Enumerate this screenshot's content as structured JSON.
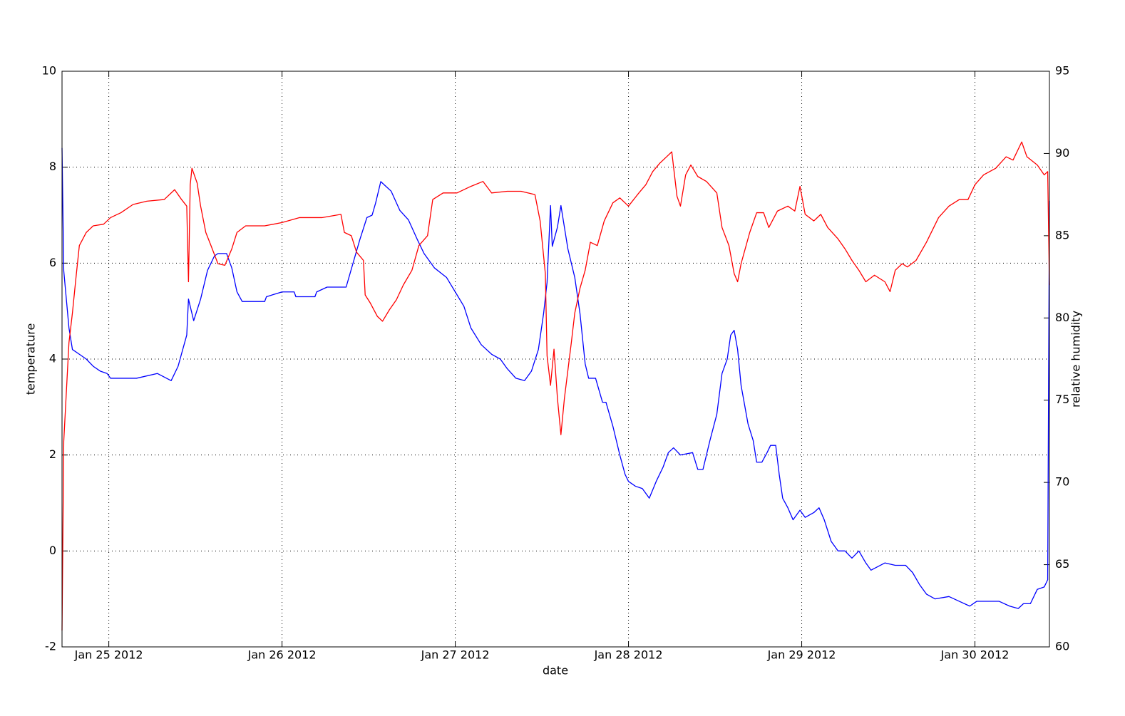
{
  "chart_data": {
    "type": "line",
    "xlabel": "date",
    "ylabel": "temperature",
    "y2label": "relative humidity",
    "xlim": [
      24.73,
      30.43
    ],
    "xticks": [
      {
        "value": 25,
        "label": "Jan 25 2012"
      },
      {
        "value": 26,
        "label": "Jan 26 2012"
      },
      {
        "value": 27,
        "label": "Jan 27 2012"
      },
      {
        "value": 28,
        "label": "Jan 28 2012"
      },
      {
        "value": 29,
        "label": "Jan 29 2012"
      },
      {
        "value": 30,
        "label": "Jan 30 2012"
      }
    ],
    "ylim": [
      -2,
      10
    ],
    "yticks": [
      -2,
      0,
      2,
      4,
      6,
      8,
      10
    ],
    "y2lim": [
      60,
      95
    ],
    "y2ticks": [
      60,
      65,
      70,
      75,
      80,
      85,
      90,
      95
    ],
    "grid": true,
    "series": [
      {
        "color": "#0000ff",
        "axis": "y",
        "x": [
          24.73,
          24.74,
          24.77,
          24.79,
          24.83,
          24.87,
          24.91,
          24.95,
          24.99,
          25.01,
          25.16,
          25.28,
          25.36,
          25.4,
          25.45,
          25.46,
          25.49,
          25.53,
          25.57,
          25.61,
          25.63,
          25.68,
          25.71,
          25.74,
          25.77,
          25.9,
          25.91,
          26.0,
          26.07,
          26.08,
          26.19,
          26.2,
          26.26,
          26.37,
          26.41,
          26.45,
          26.49,
          26.52,
          26.54,
          26.57,
          26.6,
          26.63,
          26.68,
          26.73,
          26.78,
          26.82,
          26.88,
          26.95,
          27.0,
          27.05,
          27.09,
          27.15,
          27.21,
          27.26,
          27.3,
          27.35,
          27.4,
          27.44,
          27.48,
          27.51,
          27.53,
          27.55,
          27.56,
          27.59,
          27.61,
          27.63,
          27.65,
          27.69,
          27.72,
          27.75,
          27.77,
          27.81,
          27.85,
          27.87,
          27.91,
          27.95,
          27.98,
          28.0,
          28.04,
          28.08,
          28.12,
          28.16,
          28.2,
          28.23,
          28.26,
          28.3,
          28.37,
          28.4,
          28.43,
          28.47,
          28.51,
          28.54,
          28.57,
          28.59,
          28.61,
          28.63,
          28.65,
          28.69,
          28.72,
          28.74,
          28.77,
          28.8,
          28.82,
          28.85,
          28.87,
          28.89,
          28.92,
          28.95,
          28.99,
          29.02,
          29.07,
          29.1,
          29.13,
          29.17,
          29.21,
          29.25,
          29.29,
          29.33,
          29.37,
          29.4,
          29.48,
          29.54,
          29.6,
          29.64,
          29.68,
          29.72,
          29.77,
          29.85,
          29.91,
          29.97,
          30.01,
          30.07,
          30.14,
          30.2,
          30.25,
          30.28,
          30.32,
          30.36,
          30.4,
          30.42,
          30.43
        ],
        "values": [
          8.4,
          5.84,
          4.65,
          4.2,
          4.1,
          4.0,
          3.85,
          3.75,
          3.7,
          3.6,
          3.6,
          3.7,
          3.55,
          3.85,
          4.5,
          5.25,
          4.8,
          5.25,
          5.85,
          6.15,
          6.2,
          6.2,
          5.9,
          5.4,
          5.2,
          5.2,
          5.3,
          5.4,
          5.4,
          5.3,
          5.3,
          5.4,
          5.5,
          5.5,
          6.0,
          6.5,
          6.95,
          7.0,
          7.25,
          7.7,
          7.6,
          7.5,
          7.1,
          6.9,
          6.5,
          6.2,
          5.9,
          5.7,
          5.4,
          5.1,
          4.65,
          4.3,
          4.1,
          4.0,
          3.8,
          3.6,
          3.55,
          3.75,
          4.2,
          4.95,
          5.6,
          7.2,
          6.35,
          6.75,
          7.2,
          6.75,
          6.3,
          5.7,
          4.95,
          3.9,
          3.6,
          3.6,
          3.1,
          3.1,
          2.6,
          2.0,
          1.6,
          1.45,
          1.35,
          1.3,
          1.1,
          1.45,
          1.75,
          2.05,
          2.15,
          2.0,
          2.05,
          1.7,
          1.7,
          2.3,
          2.85,
          3.7,
          4.0,
          4.5,
          4.6,
          4.2,
          3.45,
          2.65,
          2.3,
          1.85,
          1.85,
          2.05,
          2.2,
          2.2,
          1.6,
          1.1,
          0.9,
          0.65,
          0.85,
          0.7,
          0.8,
          0.9,
          0.65,
          0.2,
          0.0,
          0.0,
          -0.15,
          0.0,
          -0.25,
          -0.4,
          -0.25,
          -0.3,
          -0.3,
          -0.45,
          -0.7,
          -0.9,
          -1.0,
          -0.95,
          -1.05,
          -1.15,
          -1.05,
          -1.05,
          -1.05,
          -1.15,
          -1.2,
          -1.1,
          -1.1,
          -0.8,
          -0.75,
          -0.6,
          7.3
        ]
      },
      {
        "color": "#ff0000",
        "axis": "y2",
        "x": [
          24.73,
          24.74,
          24.77,
          24.79,
          24.81,
          24.83,
          24.87,
          24.91,
          24.97,
          25.01,
          25.07,
          25.14,
          25.22,
          25.32,
          25.38,
          25.42,
          25.45,
          25.46,
          25.47,
          25.48,
          25.51,
          25.53,
          25.56,
          25.59,
          25.63,
          25.67,
          25.71,
          25.74,
          25.79,
          25.9,
          26.0,
          26.1,
          26.23,
          26.34,
          26.36,
          26.4,
          26.43,
          26.47,
          26.48,
          26.51,
          26.55,
          26.58,
          26.62,
          26.66,
          26.7,
          26.75,
          26.79,
          26.84,
          26.87,
          26.93,
          27.01,
          27.09,
          27.16,
          27.21,
          27.3,
          27.38,
          27.46,
          27.49,
          27.52,
          27.53,
          27.55,
          27.57,
          27.59,
          27.61,
          27.63,
          27.67,
          27.69,
          27.72,
          27.75,
          27.78,
          27.82,
          27.86,
          27.91,
          27.95,
          28.0,
          28.06,
          28.1,
          28.14,
          28.18,
          28.22,
          28.25,
          28.28,
          28.3,
          28.33,
          28.36,
          28.4,
          28.45,
          28.51,
          28.54,
          28.58,
          28.61,
          28.63,
          28.65,
          28.7,
          28.74,
          28.78,
          28.81,
          28.86,
          28.92,
          28.96,
          28.99,
          29.02,
          29.07,
          29.11,
          29.15,
          29.21,
          29.25,
          29.29,
          29.33,
          29.37,
          29.42,
          29.48,
          29.51,
          29.54,
          29.58,
          29.61,
          29.66,
          29.72,
          29.79,
          29.85,
          29.91,
          29.96,
          30.0,
          30.05,
          30.12,
          30.18,
          30.22,
          30.27,
          30.3,
          30.36,
          30.4,
          30.42,
          30.43
        ],
        "values": [
          61.0,
          72.5,
          78.5,
          80.3,
          82.4,
          84.4,
          85.2,
          85.6,
          85.7,
          86.1,
          86.4,
          86.9,
          87.1,
          87.2,
          87.8,
          87.2,
          86.8,
          82.2,
          88.1,
          89.1,
          88.2,
          86.8,
          85.2,
          84.4,
          83.3,
          83.2,
          84.2,
          85.2,
          85.6,
          85.6,
          85.8,
          86.1,
          86.1,
          86.3,
          85.2,
          85.0,
          84.0,
          83.5,
          81.4,
          80.9,
          80.1,
          79.8,
          80.5,
          81.1,
          82.0,
          82.9,
          84.4,
          85.0,
          87.2,
          87.6,
          87.6,
          88.0,
          88.3,
          87.6,
          87.7,
          87.7,
          87.5,
          85.9,
          82.7,
          77.7,
          75.9,
          78.1,
          75.1,
          72.9,
          75.1,
          78.5,
          80.3,
          81.8,
          82.9,
          84.6,
          84.4,
          85.9,
          87.0,
          87.3,
          86.8,
          87.6,
          88.1,
          88.9,
          89.4,
          89.8,
          90.1,
          87.4,
          86.8,
          88.7,
          89.3,
          88.6,
          88.3,
          87.6,
          85.5,
          84.4,
          82.7,
          82.2,
          83.3,
          85.2,
          86.4,
          86.4,
          85.5,
          86.5,
          86.8,
          86.5,
          88.0,
          86.3,
          85.9,
          86.3,
          85.5,
          84.8,
          84.2,
          83.5,
          82.9,
          82.2,
          82.6,
          82.2,
          81.6,
          82.9,
          83.3,
          83.1,
          83.5,
          84.6,
          86.1,
          86.8,
          87.2,
          87.2,
          88.1,
          88.7,
          89.1,
          89.8,
          89.6,
          90.7,
          89.8,
          89.3,
          88.7,
          88.9,
          82.0
        ]
      }
    ]
  }
}
